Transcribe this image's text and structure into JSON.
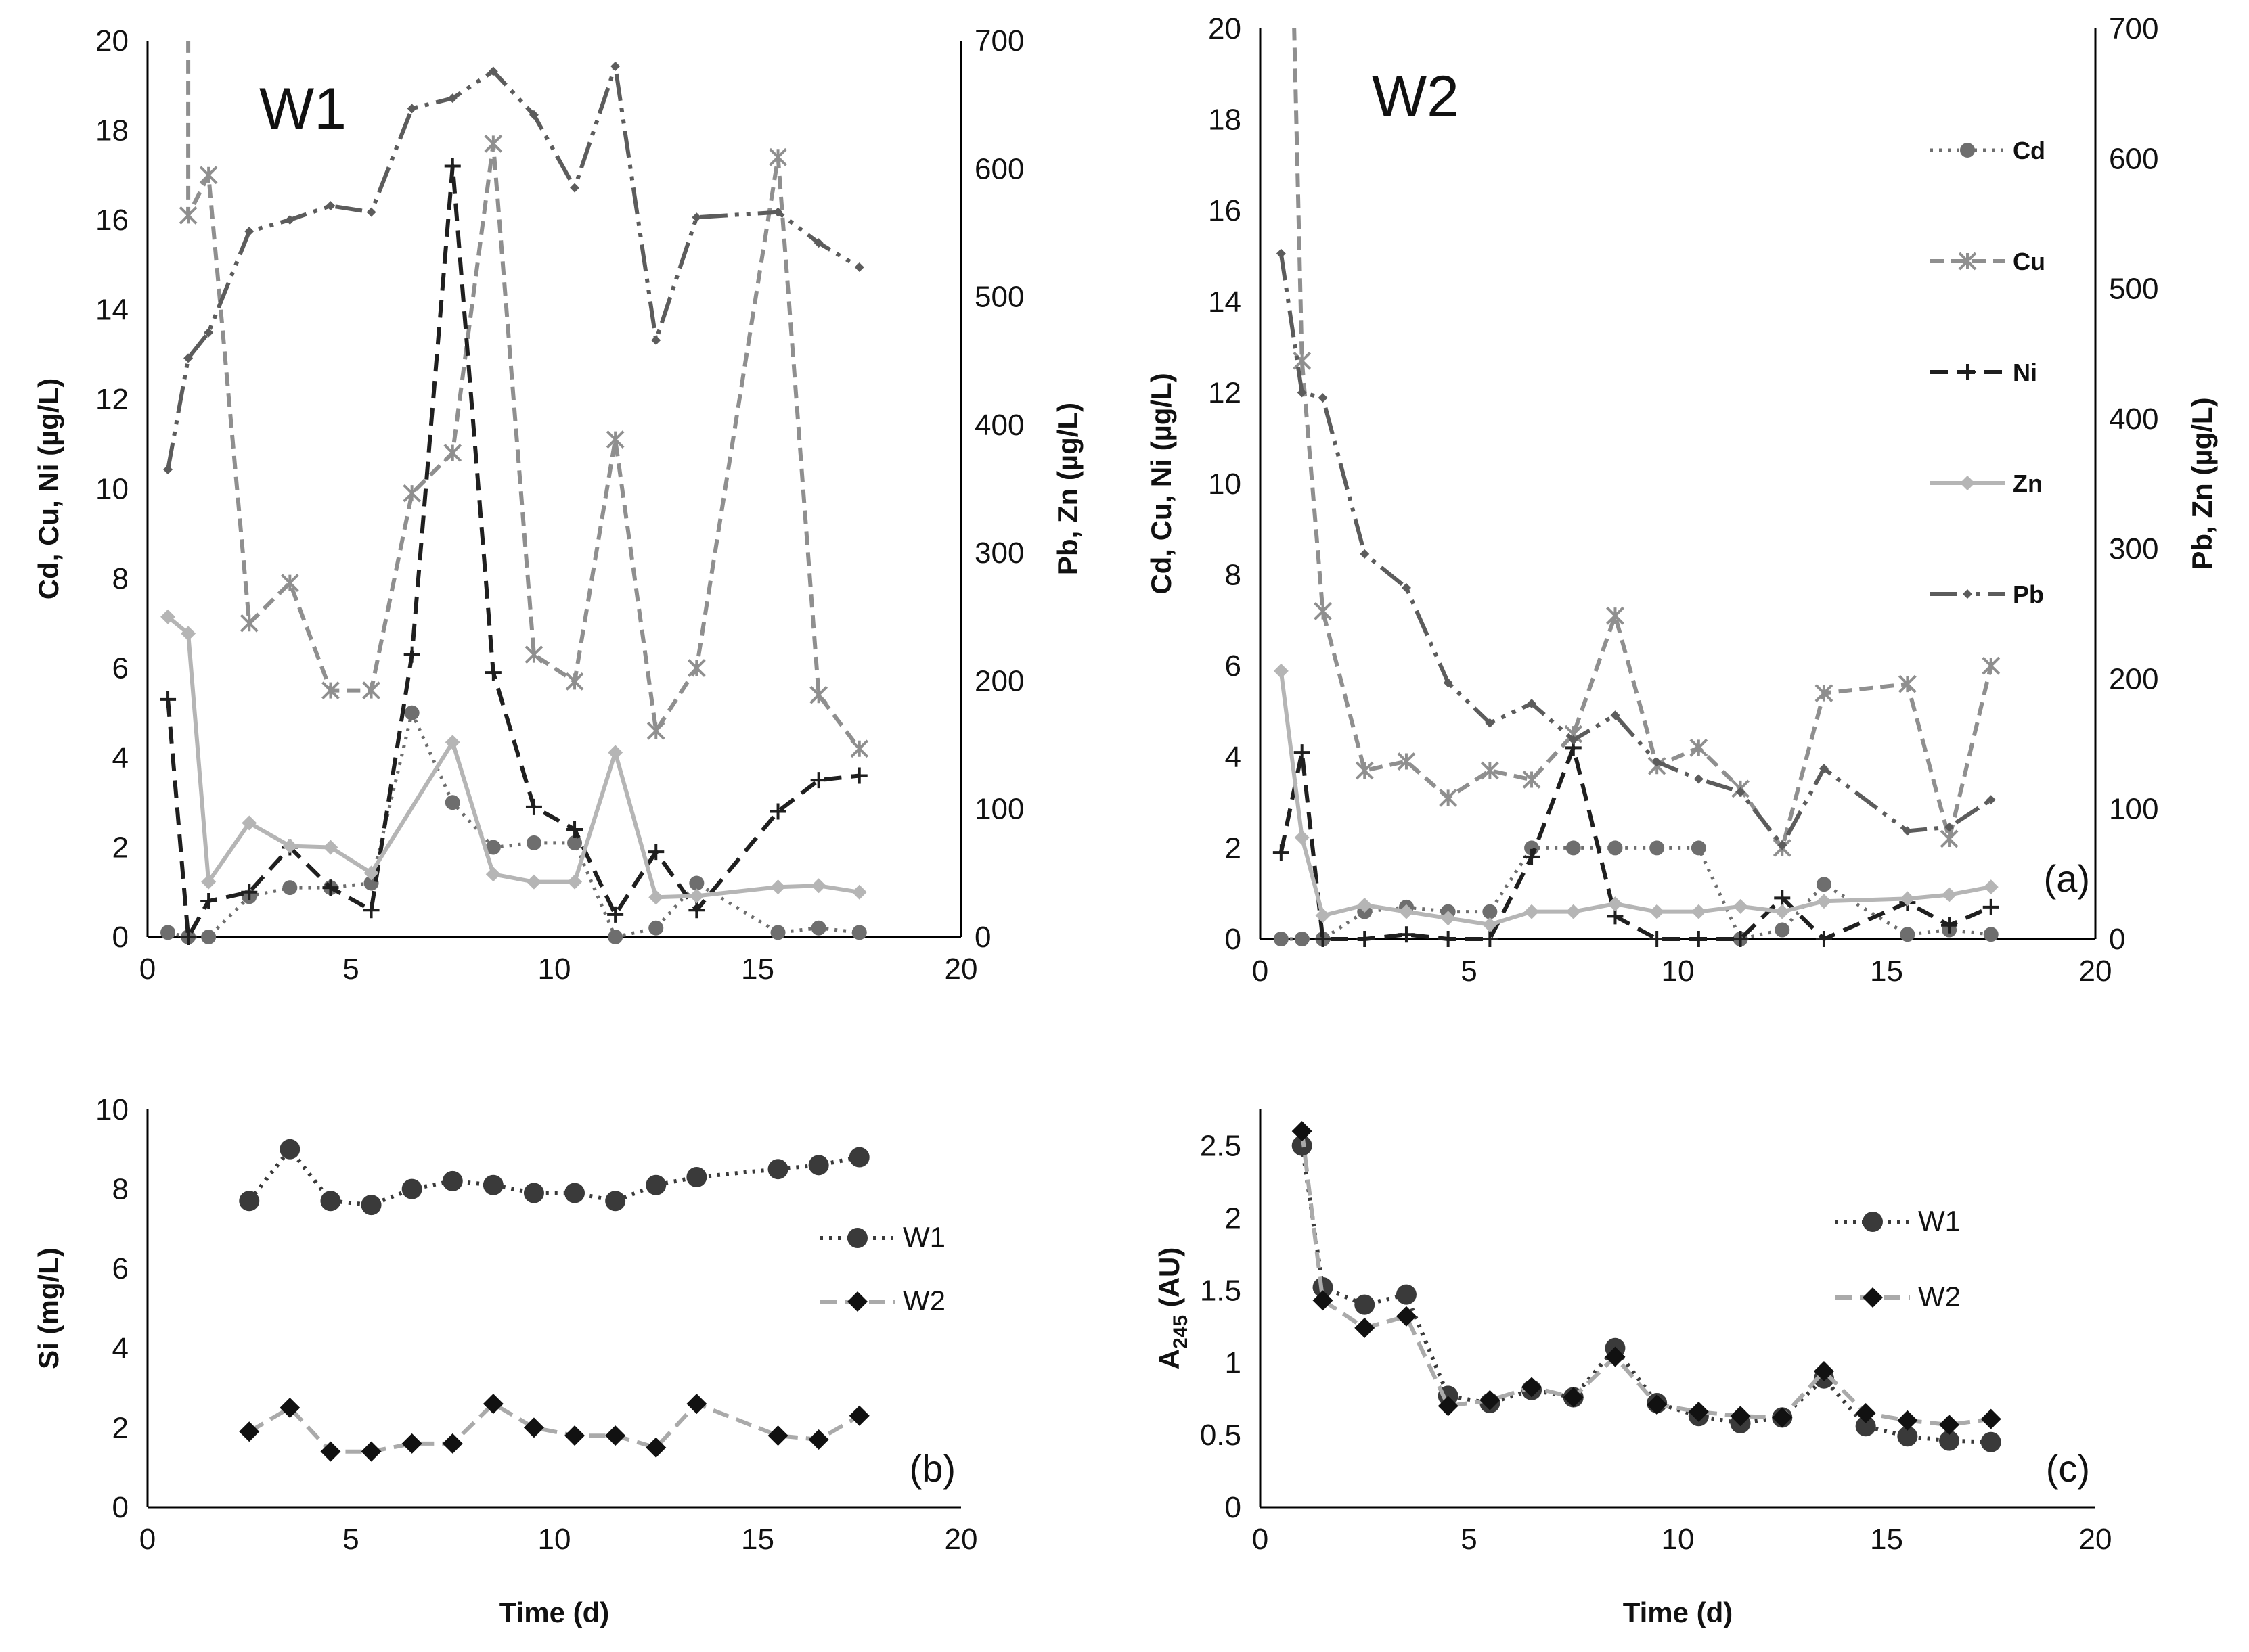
{
  "chart_data": [
    {
      "type": "line",
      "id": "W1",
      "title": "W1",
      "xlabel": "",
      "ylabel": "Cd, Cu, Ni (µg/L)",
      "y2label": "Pb, Zn (µg/L)",
      "xlim": [
        0,
        20
      ],
      "ylim": [
        0,
        20
      ],
      "y2lim": [
        0,
        700
      ],
      "xticks": [
        "0",
        "5",
        "10",
        "15",
        "20"
      ],
      "yticks": [
        "0",
        "2",
        "4",
        "6",
        "8",
        "10",
        "12",
        "14",
        "16",
        "18",
        "20"
      ],
      "y2ticks": [
        "0",
        "100",
        "200",
        "300",
        "400",
        "500",
        "600",
        "700"
      ],
      "series": [
        {
          "name": "Cd",
          "axis": "left",
          "x": [
            0.5,
            1.0,
            1.5,
            2.5,
            3.5,
            4.5,
            5.5,
            6.5,
            7.5,
            8.5,
            9.5,
            10.5,
            11.5,
            12.5,
            13.5,
            15.5,
            16.5,
            17.5
          ],
          "y": [
            0.1,
            0.0,
            0.0,
            0.9,
            1.1,
            1.1,
            1.2,
            5.0,
            3.0,
            2.0,
            2.1,
            2.1,
            0.0,
            0.2,
            1.2,
            0.1,
            0.2,
            0.1
          ]
        },
        {
          "name": "Cu",
          "axis": "left",
          "x": [
            1.0,
            1.0,
            1.5,
            2.5,
            3.5,
            4.5,
            5.5,
            6.5,
            7.5,
            8.5,
            9.5,
            10.5,
            11.5,
            12.5,
            13.5,
            15.5,
            16.5,
            17.5
          ],
          "y": [
            20.5,
            16.1,
            17.0,
            7.0,
            7.9,
            5.5,
            5.5,
            9.9,
            10.8,
            17.7,
            6.3,
            5.7,
            11.1,
            4.6,
            6.0,
            17.4,
            5.4,
            4.2
          ]
        },
        {
          "name": "Ni",
          "axis": "left",
          "x": [
            0.5,
            1.0,
            1.5,
            2.5,
            3.5,
            4.5,
            5.5,
            6.5,
            7.5,
            8.5,
            9.5,
            10.5,
            11.5,
            12.5,
            13.5,
            15.5,
            16.5,
            17.5
          ],
          "y": [
            5.3,
            0.0,
            0.8,
            1.0,
            2.0,
            1.1,
            0.6,
            6.3,
            17.2,
            5.9,
            2.9,
            2.4,
            0.5,
            1.9,
            0.6,
            2.8,
            3.5,
            3.6
          ]
        },
        {
          "name": "Zn",
          "axis": "right",
          "x": [
            0.5,
            1.0,
            1.5,
            2.5,
            3.5,
            4.5,
            5.5,
            7.5,
            8.5,
            9.5,
            10.5,
            11.5,
            12.5,
            13.5,
            15.5,
            16.5,
            17.5
          ],
          "y": [
            250,
            237,
            43,
            89,
            71,
            70,
            50,
            152,
            49,
            43,
            43,
            144,
            31,
            32,
            39,
            40,
            35
          ]
        },
        {
          "name": "Pb",
          "axis": "right",
          "x": [
            0.5,
            1.0,
            1.5,
            2.5,
            3.5,
            4.5,
            5.5,
            6.5,
            7.5,
            8.5,
            9.5,
            10.5,
            11.5,
            12.5,
            13.5,
            15.5,
            16.5,
            17.5
          ],
          "y": [
            365,
            452,
            472,
            551,
            560,
            571,
            566,
            647,
            655,
            676,
            642,
            585,
            680,
            466,
            562,
            566,
            542,
            523
          ]
        }
      ],
      "legend": "none"
    },
    {
      "type": "line",
      "id": "W2",
      "title": "W2",
      "panel_label": "(a)",
      "xlabel": "",
      "ylabel": "Cd, Cu, Ni (µg/L)",
      "y2label": "Pb, Zn (µg/L)",
      "xlim": [
        0,
        20
      ],
      "ylim": [
        0,
        20
      ],
      "y2lim": [
        0,
        700
      ],
      "xticks": [
        "0",
        "5",
        "10",
        "15",
        "20"
      ],
      "yticks": [
        "0",
        "2",
        "4",
        "6",
        "8",
        "10",
        "12",
        "14",
        "16",
        "18",
        "20"
      ],
      "y2ticks": [
        "0",
        "100",
        "200",
        "300",
        "400",
        "500",
        "600",
        "700"
      ],
      "series": [
        {
          "name": "Cd",
          "axis": "left",
          "x": [
            0.5,
            1.0,
            1.5,
            2.5,
            3.5,
            4.5,
            5.5,
            6.5,
            7.5,
            8.5,
            9.5,
            10.5,
            11.5,
            12.5,
            13.5,
            15.5,
            16.5,
            17.5
          ],
          "y": [
            0.0,
            0.0,
            0.0,
            0.6,
            0.7,
            0.6,
            0.6,
            2.0,
            2.0,
            2.0,
            2.0,
            2.0,
            0.0,
            0.2,
            1.2,
            0.1,
            0.2,
            0.1
          ]
        },
        {
          "name": "Cu",
          "axis": "left",
          "x": [
            0.8,
            1.0,
            1.5,
            2.5,
            3.5,
            4.5,
            5.5,
            6.5,
            7.5,
            8.5,
            9.5,
            10.5,
            11.5,
            12.5,
            13.5,
            15.5,
            16.5,
            17.5
          ],
          "y": [
            20.5,
            12.7,
            7.2,
            3.7,
            3.9,
            3.1,
            3.7,
            3.5,
            4.5,
            7.1,
            3.8,
            4.2,
            3.3,
            2.0,
            5.4,
            5.6,
            2.2,
            6.0
          ]
        },
        {
          "name": "Ni",
          "axis": "left",
          "x": [
            0.5,
            1.0,
            1.5,
            2.5,
            3.5,
            4.5,
            5.5,
            6.5,
            7.5,
            8.5,
            9.5,
            10.5,
            11.5,
            12.5,
            13.5,
            15.5,
            16.5,
            17.5
          ],
          "y": [
            1.9,
            4.1,
            0.0,
            0.0,
            0.1,
            0.0,
            0.0,
            1.8,
            4.2,
            0.5,
            0.0,
            0.0,
            0.0,
            0.9,
            0.0,
            0.8,
            0.3,
            0.7
          ]
        },
        {
          "name": "Zn",
          "axis": "right",
          "x": [
            0.5,
            1.0,
            1.5,
            2.5,
            3.5,
            4.5,
            5.5,
            6.5,
            7.5,
            8.5,
            9.5,
            10.5,
            11.5,
            12.5,
            13.5,
            15.5,
            16.5,
            17.5
          ],
          "y": [
            206,
            78,
            18,
            26,
            21,
            16,
            11,
            21,
            21,
            27,
            21,
            21,
            25,
            21,
            29,
            31,
            34,
            40
          ]
        },
        {
          "name": "Pb",
          "axis": "right",
          "x": [
            0.5,
            1.0,
            1.5,
            2.5,
            3.5,
            4.5,
            5.5,
            6.5,
            7.5,
            8.5,
            9.5,
            10.5,
            11.5,
            12.5,
            13.5,
            15.5,
            16.5,
            17.5
          ],
          "y": [
            527,
            420,
            416,
            296,
            270,
            197,
            166,
            181,
            153,
            172,
            136,
            123,
            113,
            72,
            131,
            83,
            86,
            107
          ]
        }
      ],
      "legend": "right"
    },
    {
      "type": "line",
      "id": "Si",
      "panel_label": "(b)",
      "xlabel": "Time (d)",
      "ylabel": "Si (mg/L)",
      "xlim": [
        0,
        20
      ],
      "ylim": [
        0,
        10
      ],
      "xticks": [
        "0",
        "5",
        "10",
        "15",
        "20"
      ],
      "yticks": [
        "0",
        "2",
        "4",
        "6",
        "8",
        "10"
      ],
      "series": [
        {
          "name": "W1",
          "x": [
            2.5,
            3.5,
            4.5,
            5.5,
            6.5,
            7.5,
            8.5,
            9.5,
            10.5,
            11.5,
            12.5,
            13.5,
            15.5,
            16.5,
            17.5
          ],
          "y": [
            7.7,
            9.0,
            7.7,
            7.6,
            8.0,
            8.2,
            8.1,
            7.9,
            7.9,
            7.7,
            8.1,
            8.3,
            8.5,
            8.6,
            8.8
          ]
        },
        {
          "name": "W2",
          "x": [
            2.5,
            3.5,
            4.5,
            5.5,
            6.5,
            7.5,
            8.5,
            9.5,
            10.5,
            11.5,
            12.5,
            13.5,
            15.5,
            16.5,
            17.5
          ],
          "y": [
            1.9,
            2.5,
            1.4,
            1.4,
            1.6,
            1.6,
            2.6,
            2.0,
            1.8,
            1.8,
            1.5,
            2.6,
            1.8,
            1.7,
            2.3
          ]
        }
      ],
      "legend": "right"
    },
    {
      "type": "line",
      "id": "A245",
      "panel_label": "(c)",
      "xlabel": "Time (d)",
      "ylabel": "A",
      "ylabel_sub": "245",
      "ylabel_suffix": " (AU)",
      "xlim": [
        0,
        20
      ],
      "ylim": [
        0,
        2.75
      ],
      "xticks": [
        "0",
        "5",
        "10",
        "15",
        "20"
      ],
      "yticks": [
        "0",
        "0.5",
        "1",
        "1.5",
        "2",
        "2.5"
      ],
      "series": [
        {
          "name": "W1",
          "x": [
            1.0,
            1.5,
            2.5,
            3.5,
            4.5,
            5.5,
            6.5,
            7.5,
            8.5,
            9.5,
            10.5,
            11.5,
            12.5,
            13.5,
            14.5,
            15.5,
            16.5,
            17.5
          ],
          "y": [
            2.5,
            1.52,
            1.4,
            1.47,
            0.77,
            0.72,
            0.81,
            0.76,
            1.1,
            0.72,
            0.63,
            0.58,
            0.62,
            0.89,
            0.56,
            0.49,
            0.46,
            0.45
          ]
        },
        {
          "name": "W2",
          "x": [
            1.0,
            1.5,
            2.5,
            3.5,
            4.5,
            5.5,
            6.5,
            7.5,
            8.5,
            9.5,
            10.5,
            11.5,
            12.5,
            13.5,
            14.5,
            15.5,
            16.5,
            17.5
          ],
          "y": [
            2.6,
            1.43,
            1.24,
            1.32,
            0.7,
            0.74,
            0.83,
            0.76,
            1.04,
            0.71,
            0.66,
            0.63,
            0.62,
            0.94,
            0.65,
            0.6,
            0.57,
            0.61
          ]
        }
      ],
      "legend": "right"
    }
  ]
}
